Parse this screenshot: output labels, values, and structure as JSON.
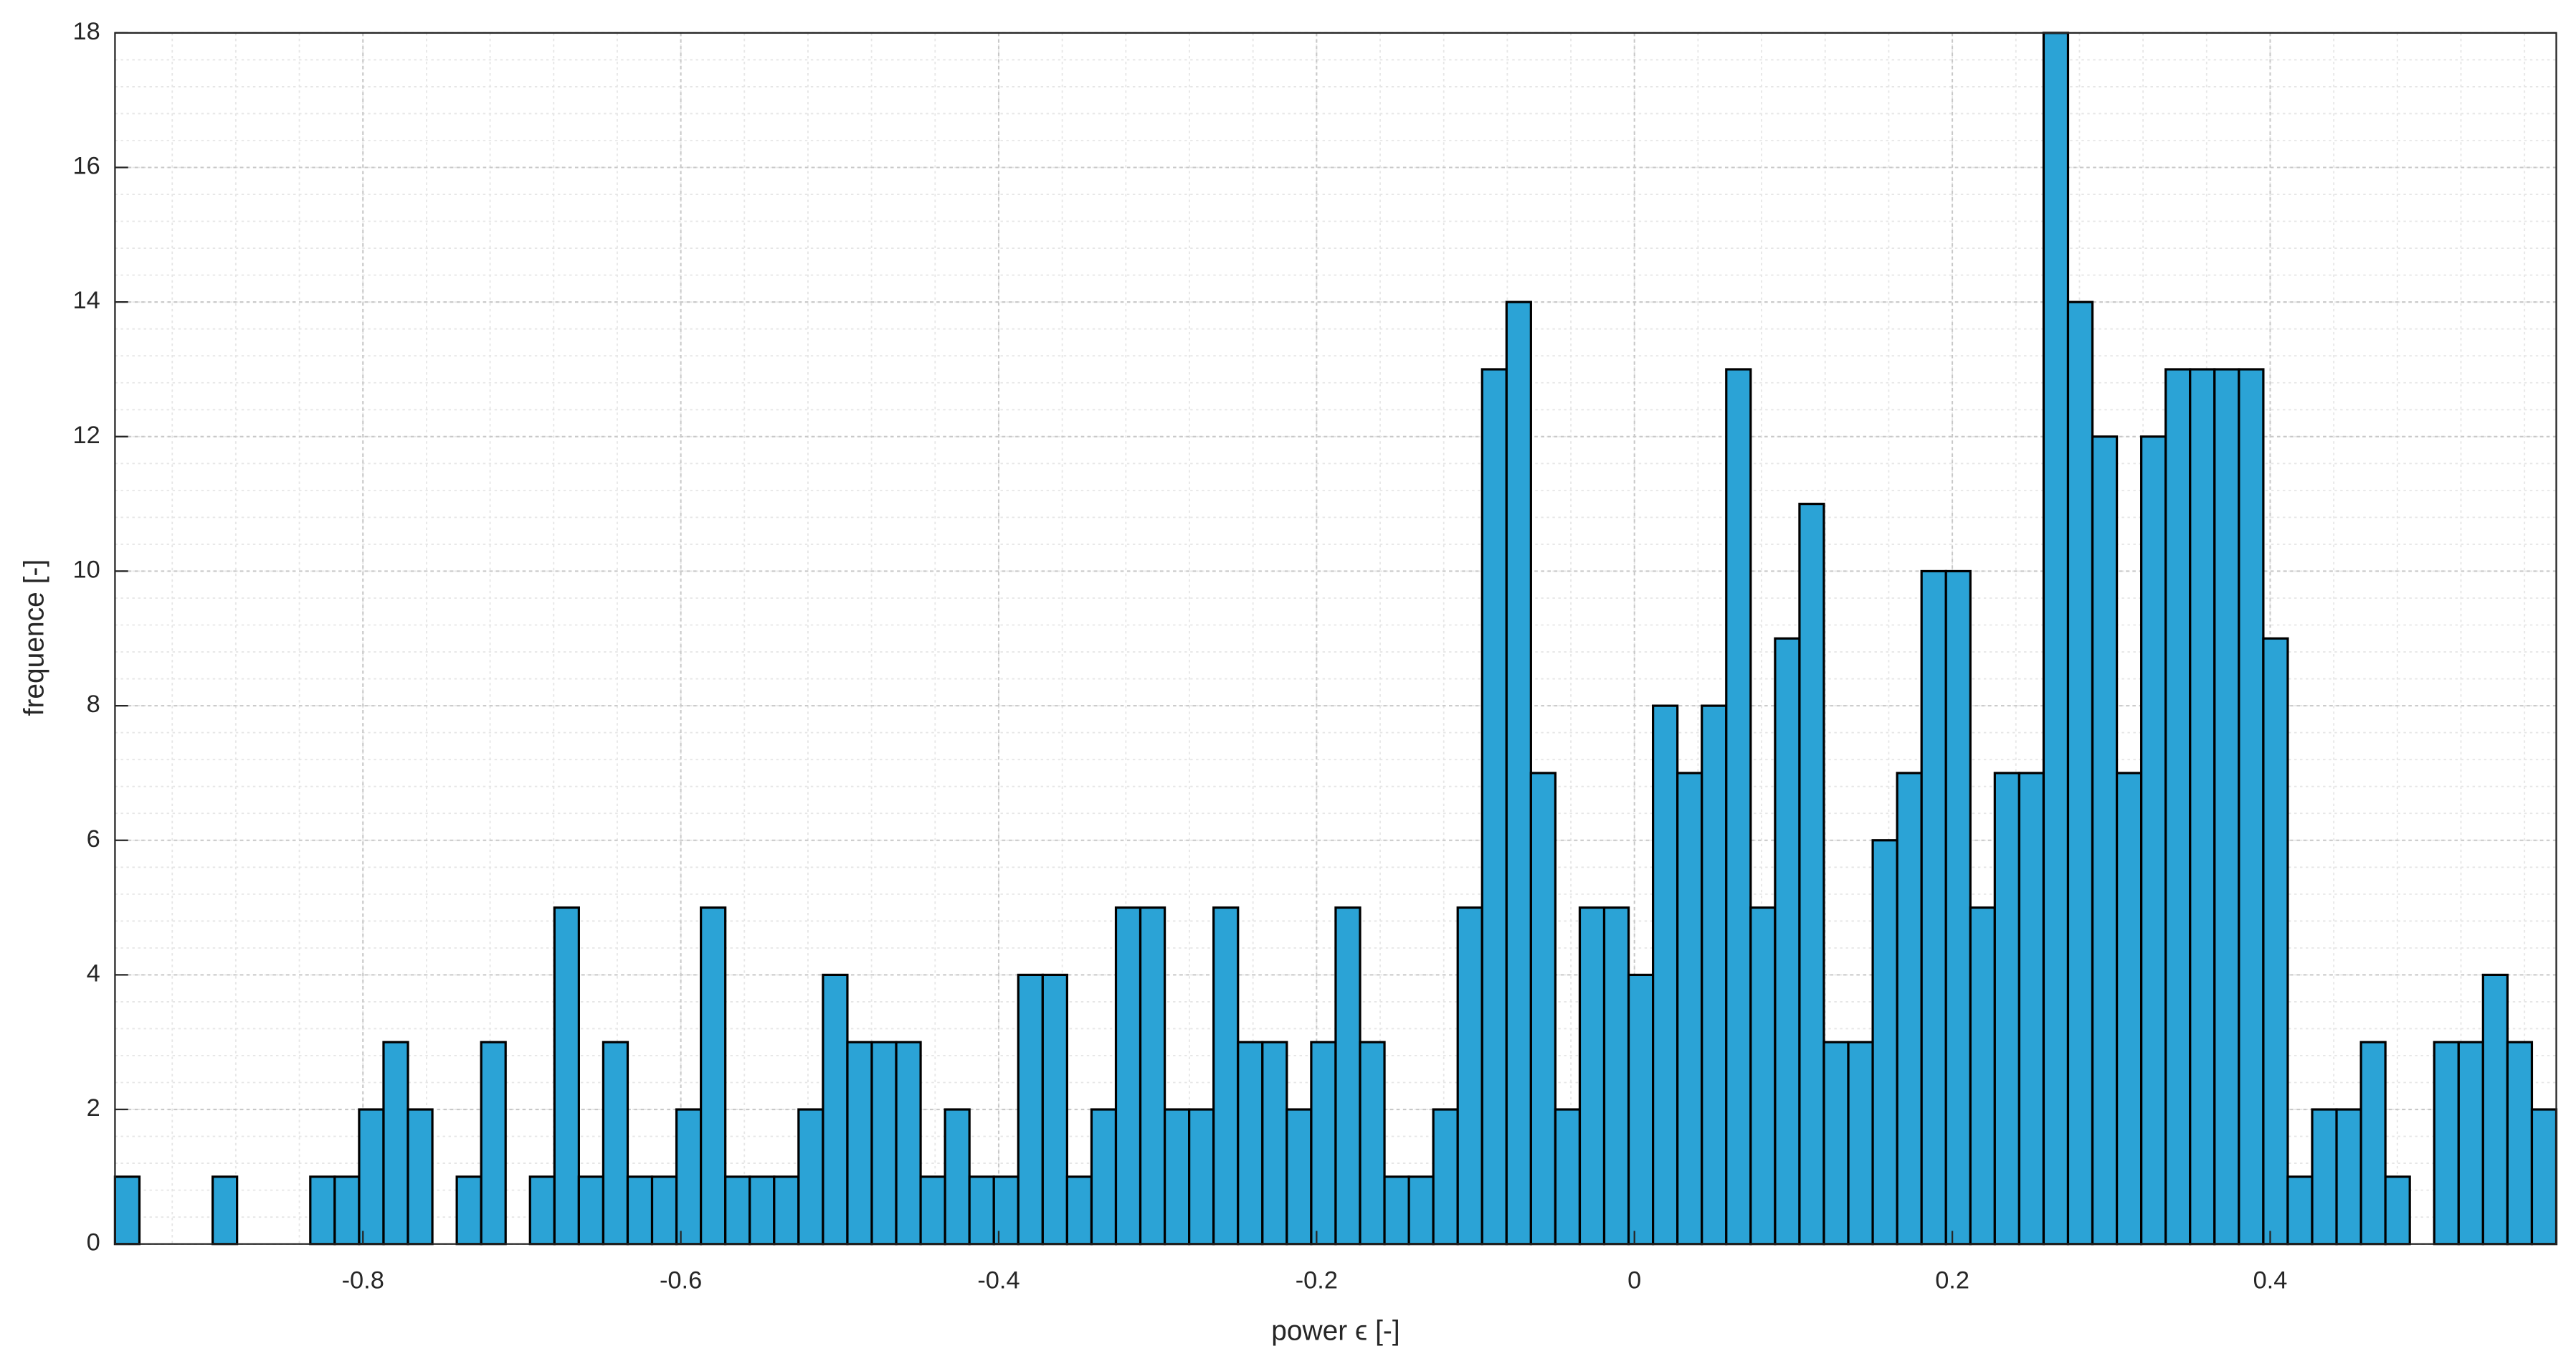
{
  "chart_data": {
    "type": "histogram",
    "xlabel": "power ϵ [-]",
    "ylabel": "frequence [-]",
    "bins": [
      -0.956,
      -0.94064,
      -0.92528,
      -0.90992,
      -0.89456,
      -0.8792,
      -0.86384,
      -0.84848,
      -0.83312,
      -0.81776,
      -0.8024,
      -0.78704,
      -0.77168,
      -0.75632,
      -0.74096,
      -0.7256,
      -0.71024,
      -0.69488,
      -0.67952,
      -0.66416,
      -0.6488,
      -0.63344,
      -0.61808,
      -0.60272,
      -0.58736,
      -0.572,
      -0.55664,
      -0.54128,
      -0.52592,
      -0.51056,
      -0.4952,
      -0.47984,
      -0.46448,
      -0.44912,
      -0.43376,
      -0.4184,
      -0.40304,
      -0.38768,
      -0.37232,
      -0.35696,
      -0.3416,
      -0.32624,
      -0.31088,
      -0.29552,
      -0.28016,
      -0.2648,
      -0.24944,
      -0.23408,
      -0.21872,
      -0.20336,
      -0.188,
      -0.17264,
      -0.15728,
      -0.14192,
      -0.12656,
      -0.1112,
      -0.09584,
      -0.08048,
      -0.06512,
      -0.04976,
      -0.0344,
      -0.01904,
      -0.00368,
      0.01168,
      0.02704,
      0.0424,
      0.05776,
      0.07312,
      0.08848,
      0.10384,
      0.1192,
      0.13456,
      0.14992,
      0.16528,
      0.18064,
      0.196,
      0.21136,
      0.22672,
      0.24208,
      0.25744,
      0.2728,
      0.28816,
      0.30352,
      0.31888,
      0.33424,
      0.3496,
      0.36496,
      0.38032,
      0.39568,
      0.41104,
      0.4264,
      0.44176,
      0.45712,
      0.47248,
      0.48784,
      0.5032,
      0.51856,
      0.53392,
      0.54928,
      0.56464,
      0.58
    ],
    "values": [
      1,
      0,
      0,
      0,
      1,
      0,
      0,
      0,
      1,
      1,
      2,
      3,
      2,
      0,
      1,
      3,
      0,
      1,
      5,
      1,
      3,
      1,
      1,
      2,
      5,
      1,
      1,
      1,
      2,
      4,
      3,
      3,
      3,
      1,
      2,
      1,
      1,
      4,
      4,
      1,
      2,
      5,
      5,
      2,
      2,
      5,
      3,
      3,
      2,
      3,
      5,
      3,
      1,
      1,
      2,
      5,
      13,
      14,
      7,
      2,
      5,
      5,
      4,
      8,
      7,
      8,
      13,
      5,
      9,
      11,
      3,
      3,
      6,
      7,
      10,
      10,
      5,
      7,
      7,
      18,
      14,
      12,
      7,
      12,
      13,
      13,
      13,
      13,
      9,
      1,
      2,
      2,
      3,
      1,
      0,
      3,
      3,
      4,
      3,
      2
    ],
    "color": "#2ba3d6",
    "edgecolor": "#000000",
    "xlim": [
      -0.956,
      0.58
    ],
    "xticks": [
      -0.8,
      -0.6,
      -0.4,
      -0.2,
      0,
      0.2,
      0.4
    ],
    "ylim": [
      0,
      18
    ],
    "yticks": [
      0,
      2,
      4,
      6,
      8,
      10,
      12,
      14,
      16,
      18
    ],
    "grid": true,
    "minor_grid": true
  }
}
